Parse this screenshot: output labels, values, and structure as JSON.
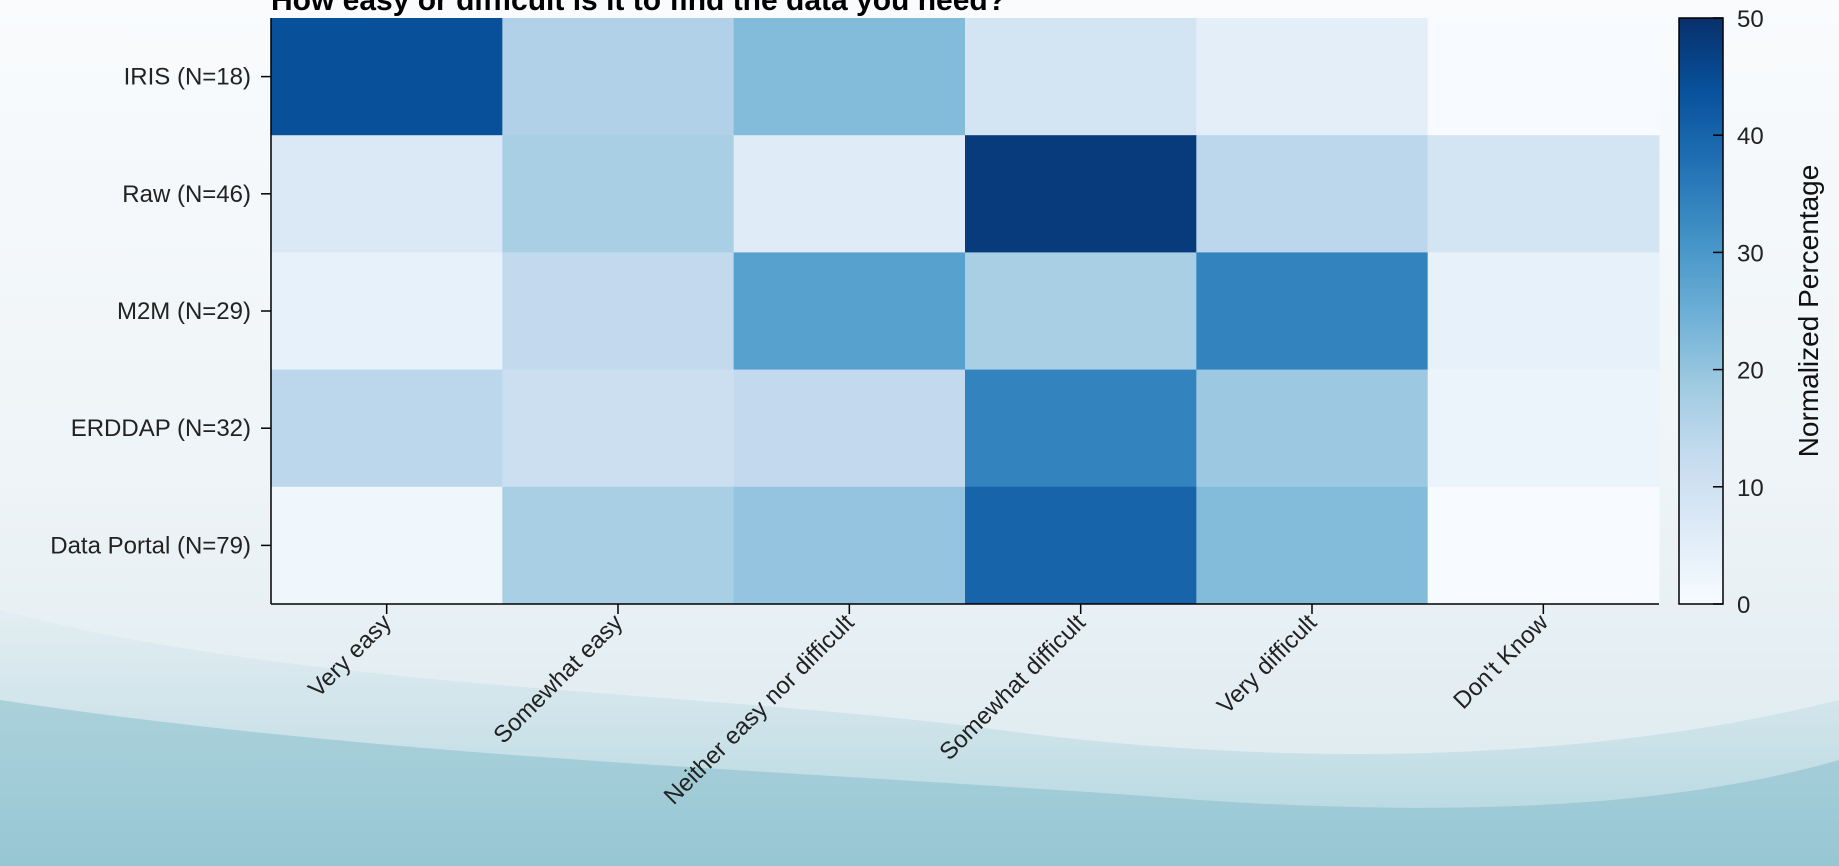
{
  "chart_data": {
    "type": "heatmap",
    "title": "How easy or difficult is it to find the data you need?",
    "x_categories": [
      "Very easy",
      "Somewhat easy",
      "Neither easy nor difficult",
      "Somewhat difficult",
      "Very difficult",
      "Don't Know"
    ],
    "y_categories": [
      "IRIS (N=18)",
      "Raw (N=46)",
      "M2M (N=29)",
      "ERDDAP (N=32)",
      "Data Portal (N=79)"
    ],
    "values": [
      [
        44,
        16,
        22,
        9,
        5,
        0
      ],
      [
        7,
        17,
        6,
        48,
        14,
        9
      ],
      [
        4,
        13,
        28,
        17,
        34,
        4
      ],
      [
        14,
        11,
        13,
        34,
        19,
        3
      ],
      [
        2,
        17,
        20,
        40,
        22,
        0
      ]
    ],
    "colorbar": {
      "label": "Normalized Percentage",
      "range": [
        0,
        50
      ],
      "ticks": [
        0,
        10,
        20,
        30,
        40,
        50
      ]
    },
    "colormap": [
      "#f7fbff",
      "#deebf7",
      "#c6dbef",
      "#9ecae1",
      "#6baed6",
      "#4292c6",
      "#2171b5",
      "#08519c",
      "#08306b"
    ]
  }
}
